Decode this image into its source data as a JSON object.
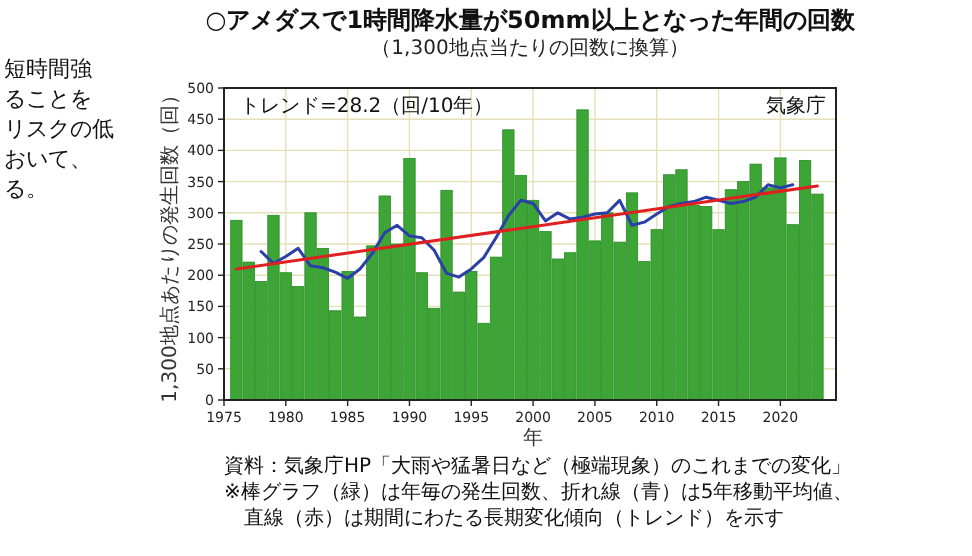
{
  "chart_data": {
    "type": "bar",
    "title": "○アメダスで1時間降水量が50mm以上となった年間の回数",
    "subtitle": "（1,300地点当たりの回数に換算）",
    "xlabel": "年",
    "ylabel": "1,300地点あたりの発生回数（回）",
    "x": [
      1976,
      1977,
      1978,
      1979,
      1980,
      1981,
      1982,
      1983,
      1984,
      1985,
      1986,
      1987,
      1988,
      1989,
      1990,
      1991,
      1992,
      1993,
      1994,
      1995,
      1996,
      1997,
      1998,
      1999,
      2000,
      2001,
      2002,
      2003,
      2004,
      2005,
      2006,
      2007,
      2008,
      2009,
      2010,
      2011,
      2012,
      2013,
      2014,
      2015,
      2016,
      2017,
      2018,
      2019,
      2020,
      2021,
      2022,
      2023
    ],
    "series": [
      {
        "type": "bar",
        "color": "#3ca535",
        "values": [
          288,
          221,
          190,
          296,
          204,
          182,
          300,
          243,
          143,
          206,
          133,
          247,
          327,
          250,
          387,
          204,
          147,
          336,
          173,
          206,
          123,
          229,
          433,
          360,
          320,
          270,
          226,
          236,
          465,
          255,
          300,
          253,
          332,
          222,
          273,
          361,
          369,
          312,
          310,
          273,
          337,
          350,
          378,
          340,
          388,
          281,
          384,
          330
        ]
      },
      {
        "type": "line",
        "color": "#2b3fa8",
        "x": [
          1978,
          1979,
          1980,
          1981,
          1982,
          1983,
          1984,
          1985,
          1986,
          1987,
          1988,
          1989,
          1990,
          1991,
          1992,
          1993,
          1994,
          1995,
          1996,
          1997,
          1998,
          1999,
          2000,
          2001,
          2002,
          2003,
          2004,
          2005,
          2006,
          2007,
          2008,
          2009,
          2010,
          2011,
          2012,
          2013,
          2014,
          2015,
          2016,
          2017,
          2018,
          2019,
          2020,
          2021
        ],
        "values": [
          238,
          219,
          230,
          243,
          215,
          212,
          205,
          195,
          210,
          235,
          268,
          280,
          263,
          260,
          240,
          203,
          197,
          210,
          228,
          260,
          295,
          320,
          315,
          287,
          300,
          290,
          293,
          298,
          300,
          320,
          280,
          285,
          298,
          310,
          315,
          318,
          325,
          320,
          315,
          318,
          325,
          345,
          340,
          345
        ]
      },
      {
        "type": "line",
        "color": "#e02020",
        "x": [
          1976,
          2023
        ],
        "values": [
          210,
          343
        ]
      }
    ],
    "xlim": [
      1975,
      2024.5
    ],
    "xticks": [
      1975,
      1980,
      1985,
      1990,
      1995,
      2000,
      2005,
      2010,
      2015,
      2020
    ],
    "ylim": [
      0,
      500
    ],
    "yticks": [
      0,
      50,
      100,
      150,
      200,
      250,
      300,
      350,
      400,
      450,
      500
    ],
    "grid": true,
    "annotations": [
      "トレンド=28.2（回/10年）",
      "気象庁",
      "資料：気象庁HP「大雨や猛暑日など（極端現象）のこれまでの変化」",
      "※棒グラフ（緑）は年毎の発生回数、折れ線（青）は5年移動平均値、",
      "直線（赤）は期間にわたる長期変化傾向（トレンド）を示す",
      "短時間強",
      "ることを",
      "リスクの低",
      "おいて、",
      "る。"
    ]
  }
}
